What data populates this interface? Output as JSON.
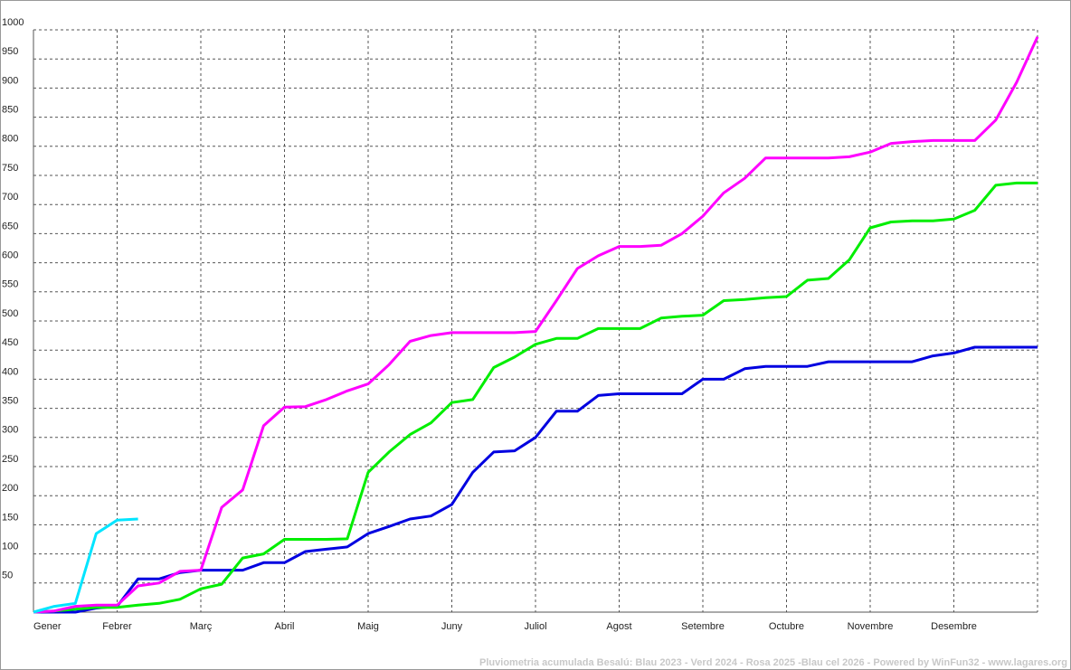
{
  "chart_data": {
    "type": "line",
    "footer": "Pluviometria acumulada Besalú: Blau 2023 - Verd 2024 - Rosa 2025 -Blau cel 2026 - Powered by WinFun32 - www.lagares.org",
    "categories": [
      "Gener",
      null,
      null,
      null,
      "Febrer",
      null,
      null,
      null,
      "Març",
      null,
      null,
      null,
      "Abril",
      null,
      null,
      null,
      "Maig",
      null,
      null,
      null,
      "Juny",
      null,
      null,
      null,
      "Juliol",
      null,
      null,
      null,
      "Agost",
      null,
      null,
      null,
      "Setembre",
      null,
      null,
      null,
      "Octubre",
      null,
      null,
      null,
      "Novembre",
      null,
      null,
      null,
      "Desembre",
      null,
      null,
      null,
      null
    ],
    "series": [
      {
        "color": "#0000e0",
        "values": [
          0,
          0,
          0,
          7,
          10,
          57,
          57,
          68,
          72,
          72,
          72,
          85,
          85,
          104,
          108,
          112,
          135,
          147,
          160,
          165,
          185,
          240,
          275,
          277,
          300,
          345,
          345,
          372,
          375,
          375,
          375,
          375,
          400,
          400,
          418,
          422,
          422,
          422,
          430,
          430,
          430,
          430,
          430,
          440,
          445,
          455,
          455,
          455,
          455
        ]
      },
      {
        "color": "#00ee00",
        "values": [
          0,
          2,
          5,
          8,
          8,
          12,
          15,
          22,
          40,
          48,
          93,
          100,
          125,
          125,
          125,
          126,
          240,
          275,
          305,
          325,
          360,
          365,
          420,
          438,
          460,
          470,
          470,
          487,
          487,
          487,
          505,
          508,
          510,
          535,
          537,
          540,
          542,
          570,
          573,
          605,
          660,
          670,
          672,
          672,
          675,
          690,
          733,
          737,
          737
        ]
      },
      {
        "color": "#ff00ff",
        "values": [
          0,
          2,
          10,
          12,
          12,
          45,
          50,
          70,
          72,
          180,
          210,
          320,
          352,
          353,
          365,
          380,
          392,
          425,
          465,
          475,
          480,
          480,
          480,
          480,
          482,
          535,
          590,
          612,
          628,
          628,
          630,
          650,
          680,
          720,
          745,
          780,
          780,
          780,
          780,
          782,
          790,
          805,
          808,
          810,
          810,
          810,
          845,
          910,
          988
        ]
      },
      {
        "color": "#00e5ff",
        "values": [
          0,
          10,
          15,
          135,
          158,
          160,
          null,
          null,
          null,
          null,
          null,
          null,
          null,
          null,
          null,
          null,
          null,
          null,
          null,
          null,
          null,
          null,
          null,
          null,
          null,
          null,
          null,
          null,
          null,
          null,
          null,
          null,
          null,
          null,
          null,
          null,
          null,
          null,
          null,
          null,
          null,
          null,
          null,
          null,
          null,
          null,
          null,
          null,
          null
        ]
      }
    ],
    "ylim": [
      0,
      1000
    ],
    "yticks": [
      50,
      100,
      150,
      200,
      250,
      300,
      350,
      400,
      450,
      500,
      550,
      600,
      650,
      700,
      750,
      800,
      850,
      900,
      950,
      1000
    ],
    "grid": true
  }
}
